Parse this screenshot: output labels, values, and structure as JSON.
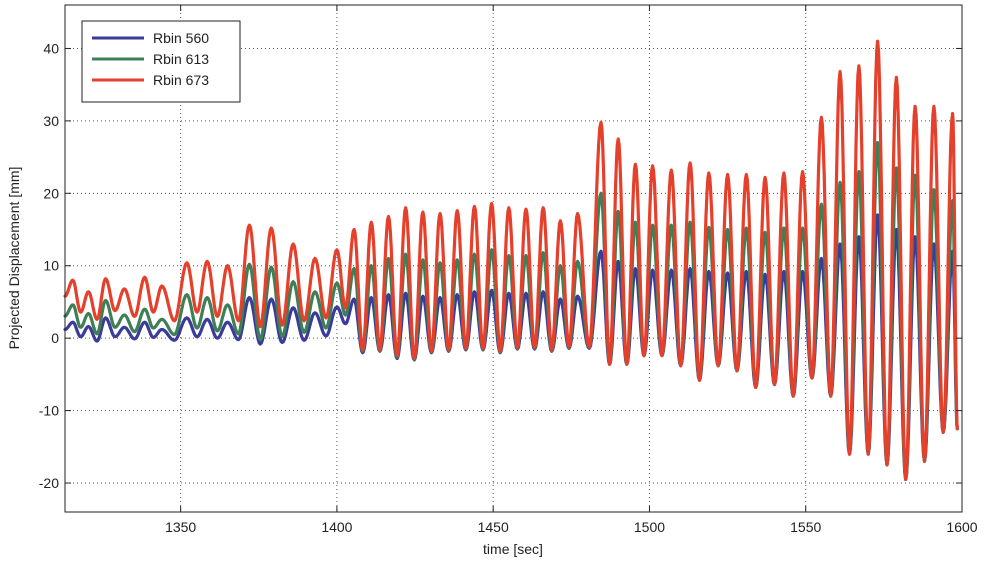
{
  "chart_data": {
    "type": "line",
    "title": "",
    "xlabel": "time [sec]",
    "ylabel": "Projected Displacement [mm]",
    "xlim": [
      1313,
      1600
    ],
    "ylim": [
      -24,
      46
    ],
    "x_ticks": [
      1350,
      1400,
      1450,
      1500,
      1550,
      1600
    ],
    "x_tick_labels": [
      "1350",
      "1400",
      "1450",
      "1500",
      "1550",
      "1600"
    ],
    "y_ticks": [
      -20,
      -10,
      0,
      10,
      20,
      30,
      40
    ],
    "y_tick_labels": [
      "-20",
      "-10",
      "0",
      "10",
      "20",
      "30",
      "40"
    ],
    "grid": true,
    "legend_position": "top-left",
    "series": [
      {
        "name": "Rbin  560",
        "color": "#3b3b9a",
        "peak_times": [
          1315.5,
          1320.5,
          1326,
          1332,
          1338.5,
          1344,
          1352,
          1358.5,
          1365,
          1372,
          1379,
          1386,
          1393,
          1400,
          1405.5,
          1411,
          1416.5,
          1422,
          1427.5,
          1433,
          1438.5,
          1444,
          1449.5,
          1455,
          1460.5,
          1466,
          1471.5,
          1477,
          1484.5,
          1490,
          1495.5,
          1501,
          1507,
          1513,
          1519,
          1525,
          1531,
          1537,
          1543,
          1549,
          1555,
          1561,
          1567,
          1573,
          1579,
          1585,
          1591,
          1597
        ],
        "peak_values": [
          2.2,
          1.6,
          2.8,
          1.5,
          2.2,
          1.2,
          2.8,
          2.6,
          2.2,
          5.6,
          5.4,
          4.2,
          3.5,
          4.3,
          5.4,
          5.6,
          6,
          6.2,
          5.8,
          5.6,
          6,
          6.4,
          6.6,
          6.2,
          6.2,
          6.4,
          5.4,
          5.8,
          12,
          10.6,
          9.6,
          9.4,
          9.4,
          9.6,
          9.2,
          9,
          9.2,
          8.8,
          9.2,
          9.2,
          11,
          13,
          14,
          17,
          15,
          14,
          13,
          12
        ],
        "trough_values": [
          0.2,
          -0.4,
          0.2,
          -0.1,
          0.1,
          -0.3,
          0.2,
          0,
          -0.2,
          -0.8,
          -0.6,
          -0.3,
          0.3,
          2,
          -2,
          -1.8,
          -2.8,
          -3,
          -2,
          -1.8,
          -1.6,
          -1.6,
          -2,
          -1.5,
          -1.5,
          -1.8,
          -1.4,
          -1.4,
          -3.6,
          -3.6,
          -2.4,
          -2.4,
          -3.8,
          -5.8,
          -3.8,
          -4.5,
          -6.8,
          -6.4,
          -8,
          -5.5,
          -8,
          -16,
          -16,
          -17.5,
          -19.5,
          -17,
          -13,
          -12.5
        ]
      },
      {
        "name": "Rbin  613",
        "color": "#3f7f55",
        "peak_times": [
          1315.5,
          1320.5,
          1326,
          1332,
          1338.5,
          1344,
          1352,
          1358.5,
          1365,
          1372,
          1379,
          1386,
          1393,
          1400,
          1405.5,
          1411,
          1416.5,
          1422,
          1427.5,
          1433,
          1438.5,
          1444,
          1449.5,
          1455,
          1460.5,
          1466,
          1471.5,
          1477,
          1484.5,
          1490,
          1495.5,
          1501,
          1507,
          1513,
          1519,
          1525,
          1531,
          1537,
          1543,
          1549,
          1555,
          1561,
          1567,
          1573,
          1579,
          1585,
          1591,
          1597
        ],
        "peak_values": [
          4.6,
          3.4,
          5.2,
          3.2,
          4,
          2.6,
          6,
          5.6,
          4.6,
          10.2,
          9.8,
          7.8,
          6.4,
          7.6,
          9.6,
          10,
          11,
          11.6,
          10.8,
          10.4,
          10.8,
          11.6,
          12.2,
          11.4,
          11.4,
          11.8,
          10,
          10.6,
          20,
          17.5,
          16,
          15.6,
          15.6,
          16,
          15.3,
          15,
          15.2,
          14.6,
          15.2,
          15.2,
          18.5,
          21.5,
          23,
          27,
          23.5,
          22.5,
          20.5,
          19
        ],
        "trough_values": [
          1.5,
          0.6,
          1.5,
          0.9,
          1.4,
          0.5,
          1.4,
          1,
          0.6,
          -0.2,
          0.2,
          0.8,
          1.4,
          3.2,
          -1.8,
          -1.7,
          -2.6,
          -2.9,
          -1.9,
          -1.7,
          -1.5,
          -1.5,
          -1.9,
          -1.4,
          -1.4,
          -1.7,
          -1.3,
          -1.3,
          -3.6,
          -3.6,
          -2.4,
          -2.4,
          -3.8,
          -5.8,
          -3.8,
          -4.5,
          -6.8,
          -6.4,
          -8,
          -5.5,
          -8,
          -16,
          -16,
          -17.5,
          -19.5,
          -17,
          -13,
          -12.5
        ]
      },
      {
        "name": "Rbin  673",
        "color": "#e5402b",
        "peak_times": [
          1315.5,
          1320.5,
          1326,
          1332,
          1338.5,
          1344,
          1352,
          1358.5,
          1365,
          1372,
          1379,
          1386,
          1393,
          1400,
          1405.5,
          1411,
          1416.5,
          1422,
          1427.5,
          1433,
          1438.5,
          1444,
          1449.5,
          1455,
          1460.5,
          1466,
          1471.5,
          1477,
          1484.5,
          1490,
          1495.5,
          1501,
          1507,
          1513,
          1519,
          1525,
          1531,
          1537,
          1543,
          1549,
          1555,
          1561,
          1567,
          1573,
          1579,
          1585,
          1591,
          1597
        ],
        "peak_values": [
          8,
          6.4,
          8.2,
          6.8,
          8.4,
          7.2,
          10.4,
          10.6,
          10,
          15.6,
          15.2,
          13,
          11,
          12.2,
          15,
          16,
          16.8,
          18,
          17.4,
          17.2,
          17.6,
          18.2,
          18.6,
          18,
          17.8,
          18,
          16.2,
          17.2,
          29.8,
          27.5,
          24,
          23.8,
          23.2,
          24.2,
          22.8,
          22.6,
          22.6,
          22.2,
          22.8,
          23,
          30.5,
          36.8,
          37.6,
          41,
          36,
          32,
          32,
          31
        ],
        "trough_values": [
          3.6,
          2.6,
          3.8,
          3,
          3.6,
          2.4,
          3.6,
          3,
          2.4,
          1.6,
          1.8,
          2.4,
          2.8,
          4.2,
          -1.6,
          -1.6,
          -2.4,
          -2.8,
          -1.8,
          -1.6,
          -1.4,
          -1.4,
          -1.8,
          -1.3,
          -1.3,
          -1.6,
          -1.2,
          -1.2,
          -3.6,
          -3.6,
          -2.4,
          -2.4,
          -3.8,
          -5.8,
          -3.8,
          -4.5,
          -6.8,
          -6.4,
          -8,
          -5.5,
          -8,
          -16,
          -16,
          -17.5,
          -19.5,
          -17,
          -13,
          -12.5
        ]
      }
    ]
  }
}
